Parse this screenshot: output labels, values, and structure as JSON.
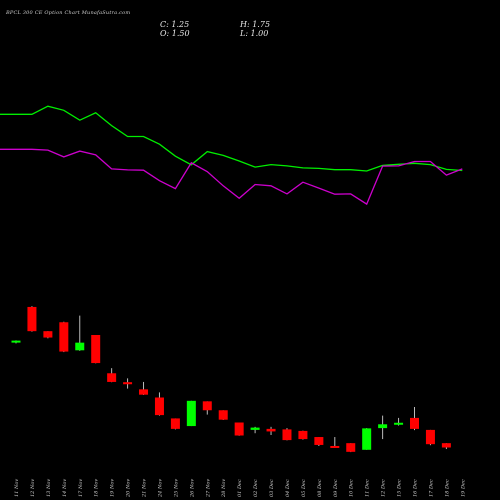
{
  "title": "BPCL 300 CE Option Chart MunafaSutra.com",
  "ohlc": {
    "close": "C: 1.25",
    "high": "H: 1.75",
    "open": "O: 1.50",
    "low": "L: 1.00"
  },
  "colors": {
    "background": "#000000",
    "up": "#00ff00",
    "down": "#ff0000",
    "line_upper": "#00ee00",
    "line_lower": "#cc00cc",
    "label": "#cfcfcf"
  },
  "chart_data": {
    "type": "candlestick",
    "categories": [
      "11 Nov",
      "12 Nov",
      "13 Nov",
      "14 Nov",
      "17 Nov",
      "18 Nov",
      "19 Nov",
      "20 Nov",
      "21 Nov",
      "24 Nov",
      "25 Nov",
      "26 Nov",
      "27 Nov",
      "28 Nov",
      "01 Dec",
      "02 Dec",
      "03 Dec",
      "04 Dec",
      "05 Dec",
      "08 Dec",
      "09 Dec",
      "10 Dec",
      "11 Dec",
      "12 Dec",
      "15 Dec",
      "16 Dec",
      "17 Dec",
      "18 Dec",
      "19 Dec"
    ],
    "candles": [
      {
        "open": 24.4,
        "high": 24.9,
        "low": 23.7,
        "close": 24.8
      },
      {
        "open": 38.0,
        "high": 38.3,
        "low": 28.3,
        "close": 28.5
      },
      {
        "open": 28.5,
        "high": 28.5,
        "low": 25.7,
        "close": 26.0
      },
      {
        "open": 32.0,
        "high": 32.2,
        "low": 20.3,
        "close": 20.5
      },
      {
        "open": 21.0,
        "high": 34.6,
        "low": 20.8,
        "close": 24.0
      },
      {
        "open": 27.0,
        "high": 27.0,
        "low": 15.9,
        "close": 16.0
      },
      {
        "open": 12.0,
        "high": 14.0,
        "low": 8.5,
        "close": 8.6
      },
      {
        "open": 8.5,
        "high": 10.0,
        "low": 6.0,
        "close": 7.7
      },
      {
        "open": 5.7,
        "high": 8.6,
        "low": 3.5,
        "close": 3.6
      },
      {
        "open": 2.5,
        "high": 4.5,
        "low": -4.6,
        "close": -4.4
      },
      {
        "open": -5.7,
        "high": -5.7,
        "low": -10.0,
        "close": -9.8
      },
      {
        "open": -8.7,
        "high": 1.2,
        "low": -8.7,
        "close": 1.2
      },
      {
        "open": 1.0,
        "high": 1.0,
        "low": -4.2,
        "close": -2.5
      },
      {
        "open": -2.5,
        "high": -2.5,
        "low": -6.3,
        "close": -6.2
      },
      {
        "open": -7.3,
        "high": -7.3,
        "low": -12.5,
        "close": -12.4
      },
      {
        "open": -10.2,
        "high": -9.0,
        "low": -11.5,
        "close": -9.3
      },
      {
        "open": -9.8,
        "high": -9.0,
        "low": -12.2,
        "close": -10.8
      },
      {
        "open": -10.0,
        "high": -9.5,
        "low": -14.3,
        "close": -14.2
      },
      {
        "open": -10.6,
        "high": -10.5,
        "low": -14.0,
        "close": -13.8
      },
      {
        "open": -13.0,
        "high": -13.0,
        "low": -16.5,
        "close": -16.1
      },
      {
        "open": -16.5,
        "high": -13.0,
        "low": -17.2,
        "close": -17.2
      },
      {
        "open": -15.4,
        "high": -15.4,
        "low": -18.9,
        "close": -18.8
      },
      {
        "open": -18.0,
        "high": -9.5,
        "low": -18.0,
        "close": -9.6
      },
      {
        "open": -9.5,
        "high": -4.6,
        "low": -13.8,
        "close": -8.0
      },
      {
        "open": -7.5,
        "high": -5.5,
        "low": -8.5,
        "close": -7.4
      },
      {
        "open": -5.5,
        "high": -1.2,
        "low": -10.3,
        "close": -9.8
      },
      {
        "open": -10.2,
        "high": -10.2,
        "low": -16.2,
        "close": -15.8
      },
      {
        "open": -15.4,
        "high": -15.4,
        "low": -17.7,
        "close": -17.1
      },
      {
        "open": null,
        "high": null,
        "low": null,
        "close": null
      }
    ],
    "line_upper": [
      113.5,
      113.5,
      116.7,
      115.1,
      111.2,
      114.1,
      109.1,
      104.8,
      104.8,
      101.8,
      97.1,
      93.7,
      98.9,
      97.4,
      95.2,
      92.8,
      93.8,
      93.3,
      92.5,
      92.3,
      91.8,
      91.8,
      91.3,
      93.5,
      93.9,
      94.3,
      93.8,
      91.9,
      91.5
    ],
    "line_lower": [
      99.8,
      99.8,
      99.5,
      96.8,
      99.1,
      97.6,
      92.1,
      91.7,
      91.6,
      87.5,
      84.4,
      94.5,
      91.0,
      85.5,
      80.6,
      86.0,
      85.5,
      82.3,
      86.9,
      84.6,
      82.2,
      82.3,
      78.3,
      93.2,
      93.3,
      95.0,
      95.0,
      89.7,
      92.1
    ],
    "ylim": [
      -22,
      125
    ],
    "grid": false,
    "legend": "none"
  }
}
